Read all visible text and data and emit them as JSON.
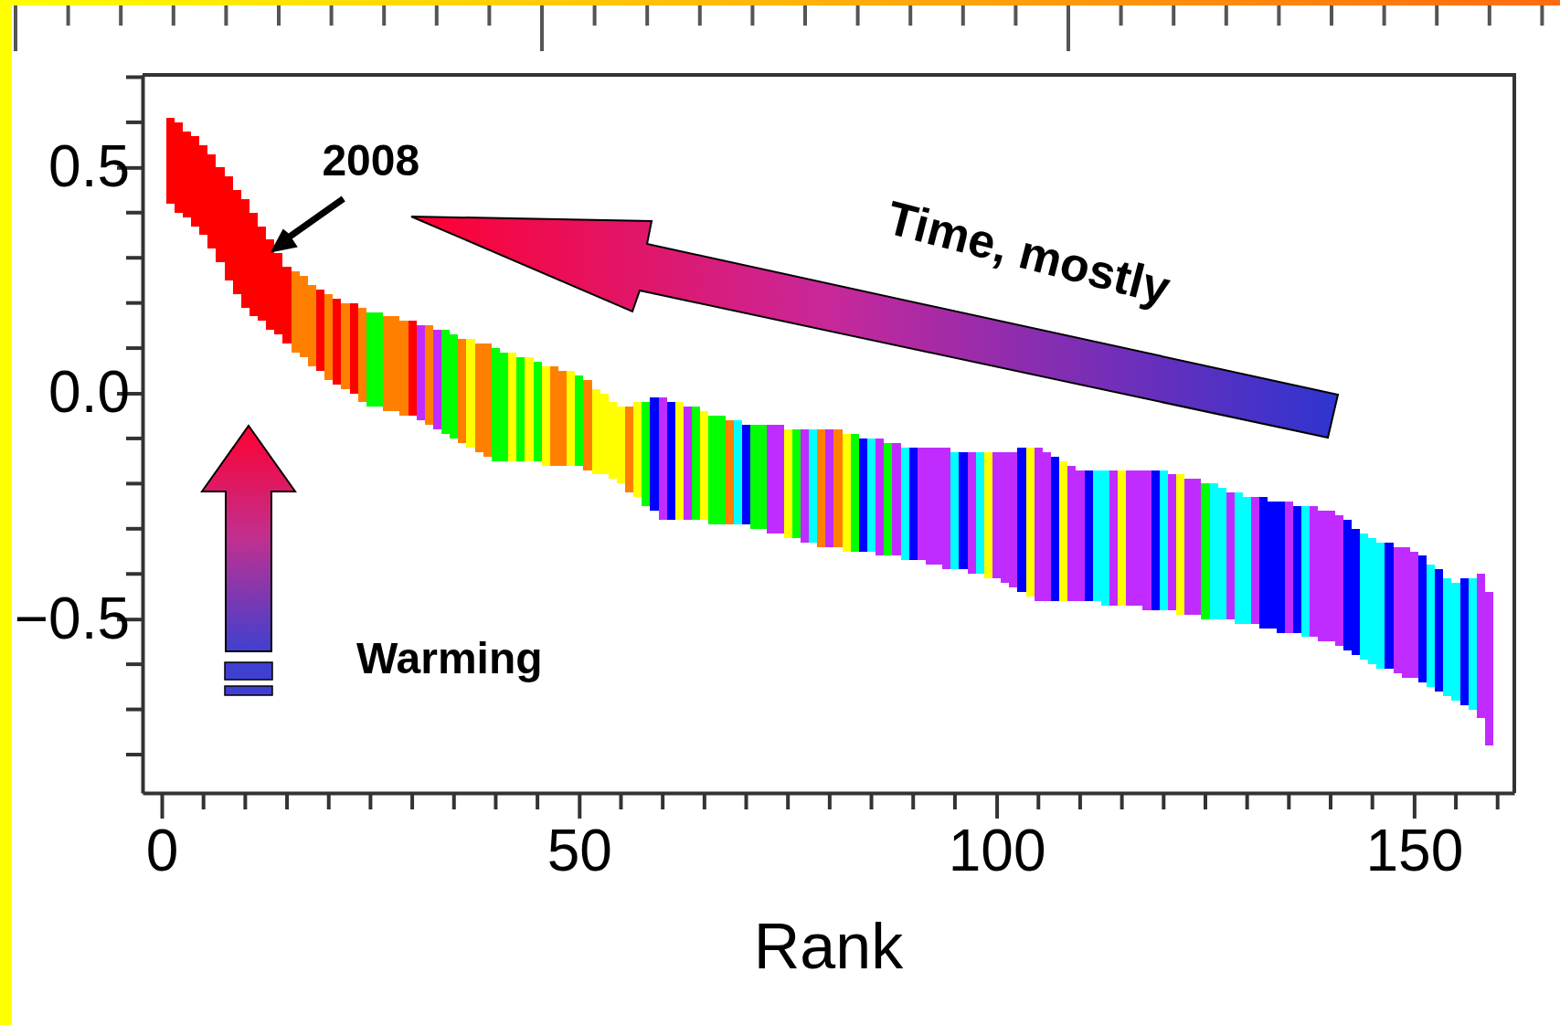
{
  "chart_data": {
    "type": "bar",
    "xlabel": "Rank",
    "xlim": [
      -2.3,
      162
    ],
    "ylim": [
      -0.885,
      0.705
    ],
    "xticks": [
      0,
      50,
      100,
      150
    ],
    "yticks": [
      {
        "value": -0.5,
        "label": "−0.5"
      },
      {
        "value": 0,
        "label": "0.0"
      },
      {
        "value": 0.5,
        "label": "0.5"
      }
    ],
    "annotations": [
      {
        "text": "2008",
        "x": 13,
        "y": 0.34
      },
      "Time, mostly",
      "Warming"
    ],
    "x": [
      1,
      2,
      3,
      4,
      5,
      6,
      7,
      8,
      9,
      10,
      11,
      12,
      13,
      14,
      15,
      16,
      17,
      18,
      19,
      20,
      21,
      22,
      23,
      24,
      25,
      26,
      27,
      28,
      29,
      30,
      31,
      32,
      33,
      34,
      35,
      36,
      37,
      38,
      39,
      40,
      41,
      42,
      43,
      44,
      45,
      46,
      47,
      48,
      49,
      50,
      51,
      52,
      53,
      54,
      55,
      56,
      57,
      58,
      59,
      60,
      61,
      62,
      63,
      64,
      65,
      66,
      67,
      68,
      69,
      70,
      71,
      72,
      73,
      74,
      75,
      76,
      77,
      78,
      79,
      80,
      81,
      82,
      83,
      84,
      85,
      86,
      87,
      88,
      89,
      90,
      91,
      92,
      93,
      94,
      95,
      96,
      97,
      98,
      99,
      100,
      101,
      102,
      103,
      104,
      105,
      106,
      107,
      108,
      109,
      110,
      111,
      112,
      113,
      114,
      115,
      116,
      117,
      118,
      119,
      120,
      121,
      122,
      123,
      124,
      125,
      126,
      127,
      128,
      129,
      130,
      131,
      132,
      133,
      134,
      135,
      136,
      137,
      138,
      139,
      140,
      141,
      142,
      143,
      144,
      145,
      146,
      147,
      148,
      149,
      150,
      151,
      152,
      153,
      154,
      155,
      156,
      157,
      158,
      159
    ],
    "base": [
      0.42,
      0.4,
      0.39,
      0.37,
      0.35,
      0.32,
      0.29,
      0.25,
      0.22,
      0.19,
      0.17,
      0.16,
      0.14,
      0.13,
      0.11,
      0.09,
      0.08,
      0.06,
      0.05,
      0.03,
      0.02,
      0.01,
      0,
      -0.02,
      -0.03,
      -0.03,
      -0.04,
      -0.04,
      -0.05,
      -0.05,
      -0.06,
      -0.07,
      -0.08,
      -0.09,
      -0.1,
      -0.11,
      -0.12,
      -0.13,
      -0.14,
      -0.15,
      -0.15,
      -0.15,
      -0.15,
      -0.15,
      -0.15,
      -0.16,
      -0.16,
      -0.16,
      -0.16,
      -0.16,
      -0.17,
      -0.18,
      -0.18,
      -0.19,
      -0.2,
      -0.22,
      -0.23,
      -0.25,
      -0.26,
      -0.28,
      -0.28,
      -0.28,
      -0.28,
      -0.28,
      -0.28,
      -0.29,
      -0.29,
      -0.29,
      -0.29,
      -0.29,
      -0.3,
      -0.3,
      -0.31,
      -0.31,
      -0.32,
      -0.32,
      -0.33,
      -0.33,
      -0.34,
      -0.34,
      -0.34,
      -0.35,
      -0.35,
      -0.35,
      -0.35,
      -0.36,
      -0.36,
      -0.36,
      -0.37,
      -0.37,
      -0.37,
      -0.38,
      -0.38,
      -0.39,
      -0.39,
      -0.39,
      -0.4,
      -0.4,
      -0.41,
      -0.41,
      -0.42,
      -0.43,
      -0.44,
      -0.45,
      -0.46,
      -0.46,
      -0.46,
      -0.46,
      -0.46,
      -0.46,
      -0.46,
      -0.46,
      -0.47,
      -0.47,
      -0.47,
      -0.47,
      -0.47,
      -0.48,
      -0.48,
      -0.48,
      -0.48,
      -0.49,
      -0.49,
      -0.49,
      -0.5,
      -0.5,
      -0.5,
      -0.5,
      -0.51,
      -0.51,
      -0.51,
      -0.52,
      -0.52,
      -0.53,
      -0.53,
      -0.53,
      -0.54,
      -0.54,
      -0.55,
      -0.55,
      -0.56,
      -0.57,
      -0.58,
      -0.59,
      -0.6,
      -0.61,
      -0.61,
      -0.62,
      -0.63,
      -0.63,
      -0.64,
      -0.65,
      -0.66,
      -0.67,
      -0.68,
      -0.69,
      -0.7,
      -0.72,
      -0.78
    ],
    "values": [
      0.19,
      0.2,
      0.19,
      0.2,
      0.2,
      0.21,
      0.21,
      0.23,
      0.23,
      0.24,
      0.23,
      0.21,
      0.2,
      0.18,
      0.17,
      0.18,
      0.18,
      0.18,
      0.18,
      0.19,
      0.19,
      0.19,
      0.2,
      0.21,
      0.21,
      0.21,
      0.21,
      0.21,
      0.21,
      0.21,
      0.21,
      0.22,
      0.22,
      0.23,
      0.23,
      0.23,
      0.24,
      0.24,
      0.25,
      0.25,
      0.24,
      0.24,
      0.23,
      0.23,
      0.22,
      0.22,
      0.22,
      0.21,
      0.21,
      0.2,
      0.2,
      0.19,
      0.18,
      0.17,
      0.17,
      0.19,
      0.21,
      0.23,
      0.25,
      0.27,
      0.26,
      0.26,
      0.25,
      0.25,
      0.24,
      0.24,
      0.24,
      0.23,
      0.23,
      0.22,
      0.23,
      0.23,
      0.24,
      0.24,
      0.24,
      0.24,
      0.25,
      0.25,
      0.26,
      0.26,
      0.26,
      0.26,
      0.26,
      0.25,
      0.25,
      0.26,
      0.25,
      0.25,
      0.25,
      0.25,
      0.25,
      0.26,
      0.26,
      0.27,
      0.26,
      0.26,
      0.27,
      0.27,
      0.28,
      0.28,
      0.29,
      0.3,
      0.32,
      0.33,
      0.34,
      0.33,
      0.32,
      0.31,
      0.3,
      0.29,
      0.29,
      0.29,
      0.3,
      0.3,
      0.3,
      0.3,
      0.3,
      0.31,
      0.31,
      0.31,
      0.3,
      0.31,
      0.3,
      0.3,
      0.3,
      0.3,
      0.29,
      0.28,
      0.29,
      0.28,
      0.28,
      0.29,
      0.28,
      0.29,
      0.29,
      0.28,
      0.29,
      0.29,
      0.29,
      0.29,
      0.29,
      0.29,
      0.28,
      0.28,
      0.28,
      0.28,
      0.28,
      0.28,
      0.29,
      0.28,
      0.28,
      0.27,
      0.27,
      0.26,
      0.26,
      0.28,
      0.29,
      0.32,
      0.34
    ],
    "colors": [
      "#ff0000",
      "#ff0000",
      "#ff0000",
      "#ff0000",
      "#ff0000",
      "#ff0000",
      "#ff0000",
      "#ff0000",
      "#ff0000",
      "#ff0000",
      "#ff0000",
      "#ff0000",
      "#ff0000",
      "#ff0000",
      "#ff0000",
      "#ff8000",
      "#ff8000",
      "#ff8000",
      "#ff0000",
      "#ff8000",
      "#ff0000",
      "#ff8000",
      "#ff0000",
      "#ff8000",
      "#00ff00",
      "#00ff00",
      "#ff8000",
      "#ff8000",
      "#ff8000",
      "#ff0000",
      "#c02cff",
      "#ff8000",
      "#c02cff",
      "#00ff00",
      "#00ff00",
      "#ff8000",
      "#ffff00",
      "#ff8000",
      "#ff8000",
      "#00ff00",
      "#00ff00",
      "#ffff00",
      "#00ff00",
      "#ffff00",
      "#00ff00",
      "#ffff00",
      "#ff8000",
      "#ff8000",
      "#ffff00",
      "#00ff00",
      "#ff8000",
      "#ffff00",
      "#ffff00",
      "#ffff00",
      "#ffff00",
      "#ff8000",
      "#ffff00",
      "#00ff00",
      "#0000ff",
      "#c02cff",
      "#0000ff",
      "#ffff00",
      "#c02cff",
      "#00ff00",
      "#ffff00",
      "#00ff00",
      "#00ff00",
      "#ff8000",
      "#00ffff",
      "#0000ff",
      "#00ff00",
      "#00ff00",
      "#c02cff",
      "#c02cff",
      "#ffff00",
      "#00ff00",
      "#c02cff",
      "#00ffff",
      "#ff8000",
      "#c02cff",
      "#ff8000",
      "#ffff00",
      "#00ff00",
      "#0000ff",
      "#00ffff",
      "#c02cff",
      "#00ff00",
      "#c02cff",
      "#00ffff",
      "#0000ff",
      "#c02cff",
      "#c02cff",
      "#c02cff",
      "#c02cff",
      "#00ffff",
      "#0000ff",
      "#c02cff",
      "#00ffff",
      "#ffff00",
      "#c02cff",
      "#c02cff",
      "#c02cff",
      "#0000ff",
      "#ffff00",
      "#c02cff",
      "#c02cff",
      "#0000ff",
      "#ffff00",
      "#c02cff",
      "#c02cff",
      "#0000ff",
      "#00ffff",
      "#00ffff",
      "#c02cff",
      "#ffff00",
      "#c02cff",
      "#c02cff",
      "#c02cff",
      "#0000ff",
      "#00ffff",
      "#c02cff",
      "#ffff00",
      "#c02cff",
      "#c02cff",
      "#00ff00",
      "#00ffff",
      "#00ffff",
      "#c02cff",
      "#00ffff",
      "#00ffff",
      "#c02cff",
      "#0000ff",
      "#0000ff",
      "#0000ff",
      "#c02cff",
      "#0000ff",
      "#00ffff",
      "#c02cff",
      "#c02cff",
      "#c02cff",
      "#c02cff",
      "#0000ff",
      "#0000ff",
      "#00ffff",
      "#00ffff",
      "#00ffff",
      "#0000ff",
      "#c02cff",
      "#c02cff",
      "#c02cff",
      "#0000ff",
      "#00ffff",
      "#0000ff",
      "#00ffff",
      "#00ffff",
      "#0000ff",
      "#00ffff",
      "#c02cff",
      "#c02cff"
    ]
  }
}
